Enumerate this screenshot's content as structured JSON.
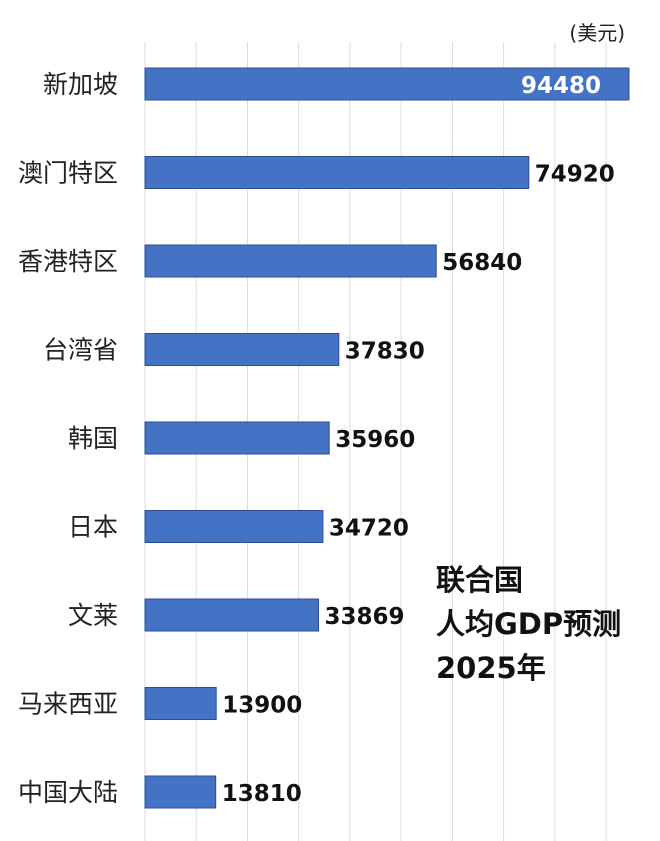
{
  "chart_data": {
    "type": "bar",
    "orientation": "horizontal",
    "title_lines": [
      "联合国",
      "人均GDP预测",
      "2025年"
    ],
    "unit": "(美元)",
    "categories": [
      "新加坡",
      "澳门特区",
      "香港特区",
      "台湾省",
      "韩国",
      "日本",
      "文莱",
      "马来西亚",
      "中国大陆"
    ],
    "values": [
      94480,
      74920,
      56840,
      37830,
      35960,
      34720,
      33869,
      13900,
      13810
    ],
    "value_labels": [
      "94480",
      "74920",
      "56840",
      "37830",
      "35960",
      "34720",
      "33869",
      "13900",
      "13810"
    ],
    "xlim": [
      0,
      100000
    ],
    "grid": true,
    "colors": {
      "bar": "#4472c4",
      "bar_border": "#2e4f8f",
      "grid": "#dcdcdc"
    }
  }
}
